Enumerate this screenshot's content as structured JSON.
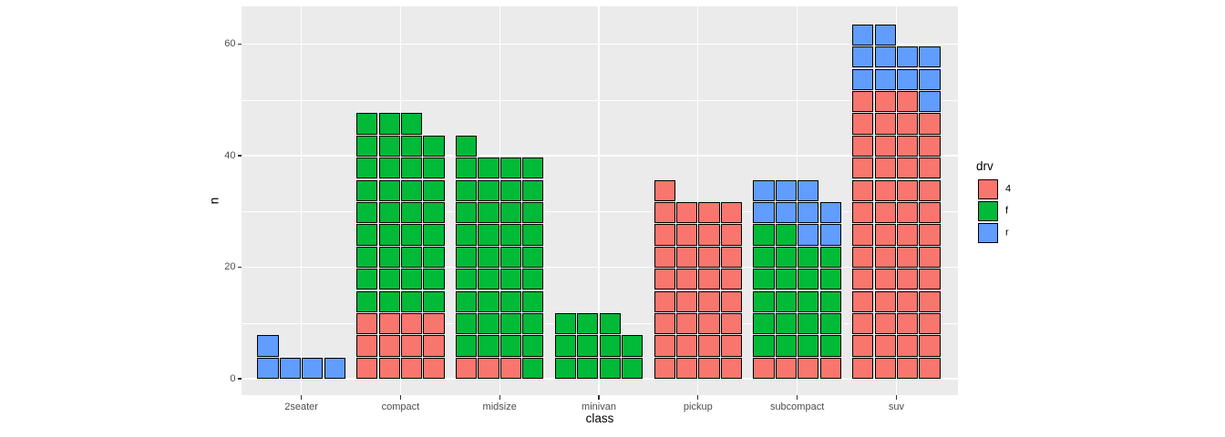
{
  "chart_data": {
    "type": "bar",
    "variant": "stacked-unit-squares",
    "title": "",
    "xlabel": "class",
    "ylabel": "n",
    "categories": [
      "2seater",
      "compact",
      "midsize",
      "minivan",
      "pickup",
      "subcompact",
      "suv"
    ],
    "series": [
      {
        "name": "4",
        "color": "#F8766D",
        "values": [
          0,
          12,
          3,
          0,
          33,
          4,
          51
        ]
      },
      {
        "name": "f",
        "color": "#00BA38",
        "values": [
          0,
          35,
          38,
          11,
          0,
          22,
          0
        ]
      },
      {
        "name": "r",
        "color": "#619CFF",
        "values": [
          5,
          0,
          0,
          0,
          0,
          9,
          11
        ]
      }
    ],
    "totals": [
      5,
      47,
      41,
      11,
      33,
      35,
      62
    ],
    "units_per_row": 4,
    "y_ticks": [
      "0",
      "20",
      "40",
      "60"
    ],
    "y_tick_values": [
      0,
      20,
      40,
      60
    ],
    "y_minor_values": [
      10,
      30,
      50
    ],
    "ylim": [
      0,
      65
    ],
    "grid": true,
    "legend_title": "drv",
    "legend_position": "right",
    "colors": {
      "panel_background": "#EBEBEB",
      "gridline": "#FFFFFF",
      "square_border": "#000000",
      "tick_label": "#4D4D4D",
      "axis_title": "#000000"
    }
  }
}
